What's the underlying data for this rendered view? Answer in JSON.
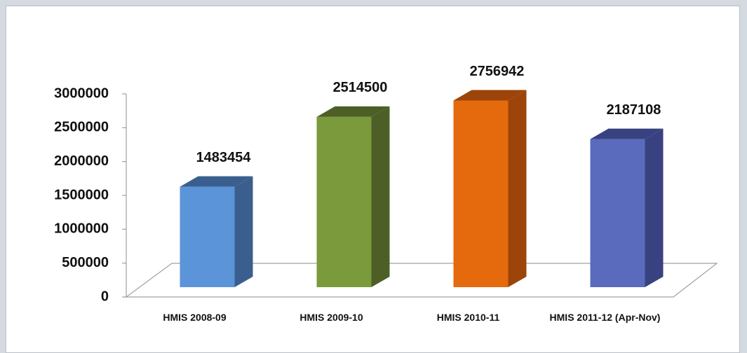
{
  "chart_data": {
    "type": "bar3d",
    "categories": [
      "HMIS 2008-09",
      "HMIS 2009-10",
      "HMIS 2010-11",
      "HMIS 2011-12 (Apr-Nov)"
    ],
    "values": [
      1483454,
      2514500,
      2756942,
      2187108
    ],
    "colors": [
      "#5b94d8",
      "#7a9a3c",
      "#e5690d",
      "#5a6bbd"
    ],
    "side_colors": [
      "#3a5f8e",
      "#4d5f26",
      "#9c4409",
      "#384280"
    ],
    "ylim": [
      0,
      3000000
    ],
    "yticks": [
      0,
      500000,
      1000000,
      1500000,
      2000000,
      2500000,
      3000000
    ],
    "grid": false
  }
}
